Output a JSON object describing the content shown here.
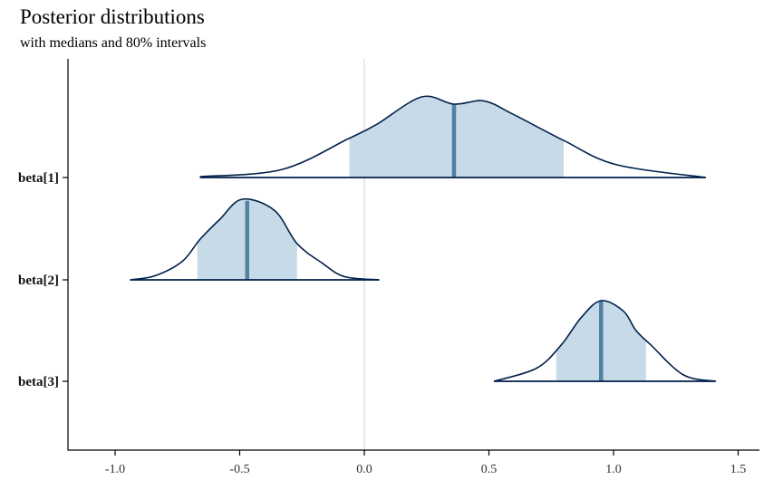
{
  "chart_data": {
    "type": "area",
    "title": "Posterior distributions",
    "subtitle": "with medians and 80% intervals",
    "xlabel": "",
    "ylabel": "",
    "xlim": [
      -1.2,
      1.55
    ],
    "x_ticks": [
      "-1.0",
      "-0.5",
      "0.0",
      "0.5",
      "1.0",
      "1.5"
    ],
    "x_tick_values": [
      -1.0,
      -0.5,
      0.0,
      0.5,
      1.0,
      1.5
    ],
    "reference_line": 0.0,
    "grid": false,
    "colors": {
      "outline": "#011f4b",
      "interval_fill": "#c6dae7",
      "median": "#4f82a3",
      "reference": "#d9d9d9"
    },
    "series": [
      {
        "name": "beta[1]",
        "median": 0.36,
        "interval": [
          -0.06,
          0.8
        ],
        "density_x": [
          -0.66,
          -0.33,
          -0.065,
          0.05,
          0.23,
          0.36,
          0.48,
          0.6,
          0.8,
          1.01,
          1.37
        ],
        "density_scaled": [
          0.01,
          0.1,
          0.48,
          0.66,
          1.0,
          0.91,
          0.95,
          0.78,
          0.46,
          0.16,
          0.0
        ]
      },
      {
        "name": "beta[2]",
        "median": -0.47,
        "interval": [
          -0.67,
          -0.27
        ],
        "density_x": [
          -0.94,
          -0.84,
          -0.73,
          -0.66,
          -0.58,
          -0.49,
          -0.36,
          -0.27,
          -0.17,
          -0.08,
          0.06
        ],
        "density_scaled": [
          0.0,
          0.05,
          0.23,
          0.5,
          0.75,
          1.0,
          0.86,
          0.45,
          0.21,
          0.04,
          0.0
        ]
      },
      {
        "name": "beta[3]",
        "median": 0.95,
        "interval": [
          0.77,
          1.13
        ],
        "density_x": [
          0.52,
          0.69,
          0.79,
          0.87,
          0.95,
          1.04,
          1.09,
          1.15,
          1.28,
          1.41
        ],
        "density_scaled": [
          0.0,
          0.16,
          0.45,
          0.79,
          1.0,
          0.87,
          0.63,
          0.45,
          0.08,
          0.0
        ]
      }
    ]
  }
}
